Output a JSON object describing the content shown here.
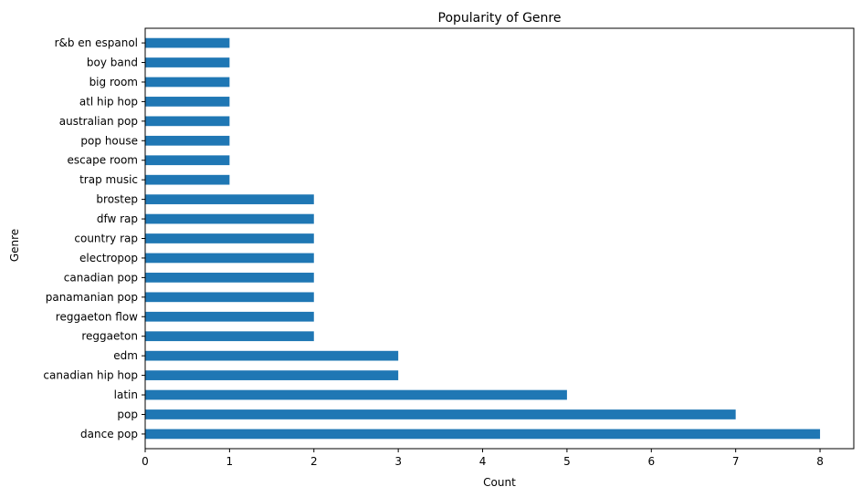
{
  "chart_data": {
    "type": "bar",
    "orientation": "horizontal",
    "title": "Popularity of Genre",
    "xlabel": "Count",
    "ylabel": "Genre",
    "xlim": [
      0,
      8.4
    ],
    "x_ticks": [
      0,
      1,
      2,
      3,
      4,
      5,
      6,
      7,
      8
    ],
    "grid": false,
    "bar_color": "#1f77b4",
    "categories": [
      "dance pop",
      "pop",
      "latin",
      "canadian hip hop",
      "edm",
      "reggaeton",
      "reggaeton flow",
      "panamanian pop",
      "canadian pop",
      "electropop",
      "country rap",
      "dfw rap",
      "brostep",
      "trap music",
      "escape room",
      "pop house",
      "australian pop",
      "atl hip hop",
      "big room",
      "boy band",
      "r&b en espanol"
    ],
    "values": [
      8,
      7,
      5,
      3,
      3,
      2,
      2,
      2,
      2,
      2,
      2,
      2,
      2,
      1,
      1,
      1,
      1,
      1,
      1,
      1,
      1
    ]
  }
}
